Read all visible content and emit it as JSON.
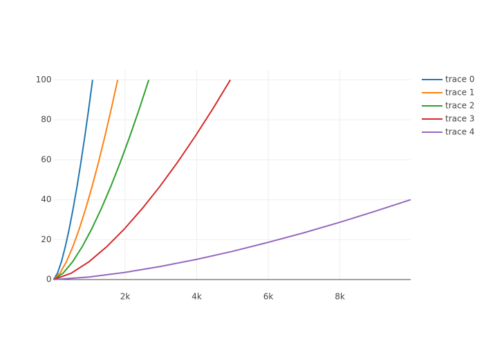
{
  "chart_data": {
    "type": "line",
    "series": [
      {
        "name": "trace 0",
        "color": "#1f77b4",
        "x": [
          0,
          109,
          218,
          327,
          436,
          545,
          654,
          763,
          872,
          981,
          1090
        ],
        "values": [
          0,
          3.2,
          8.9,
          16.4,
          25.3,
          35.4,
          46.5,
          58.6,
          71.6,
          85.4,
          100
        ]
      },
      {
        "name": "trace 1",
        "color": "#ff7f0e",
        "x": [
          0,
          179,
          358,
          537,
          716,
          895,
          1074,
          1253,
          1432,
          1611,
          1790
        ],
        "values": [
          0,
          3.2,
          8.9,
          16.4,
          25.3,
          35.4,
          46.5,
          58.6,
          71.6,
          85.4,
          100
        ]
      },
      {
        "name": "trace 2",
        "color": "#2ca02c",
        "x": [
          0,
          266,
          532,
          798,
          1064,
          1330,
          1596,
          1862,
          2128,
          2394,
          2660
        ],
        "values": [
          0,
          3.2,
          8.9,
          16.4,
          25.3,
          35.4,
          46.5,
          58.6,
          71.6,
          85.4,
          100
        ]
      },
      {
        "name": "trace 3",
        "color": "#d62728",
        "x": [
          0,
          494,
          988,
          1482,
          1976,
          2470,
          2964,
          3458,
          3952,
          4446,
          4940
        ],
        "values": [
          0,
          3.2,
          8.9,
          16.4,
          25.3,
          35.4,
          46.5,
          58.6,
          71.6,
          85.4,
          100
        ]
      },
      {
        "name": "trace 4",
        "color": "#9467bd",
        "x": [
          0,
          998,
          1996,
          2994,
          3992,
          4990,
          5988,
          6986,
          7984,
          8982,
          9980
        ],
        "values": [
          0,
          1.3,
          3.6,
          6.6,
          10.1,
          14.1,
          18.6,
          23.4,
          28.6,
          34.2,
          40
        ]
      }
    ],
    "xlim": [
      0,
      9980
    ],
    "ylim": [
      0,
      105
    ],
    "xticks": [
      {
        "value": 2000,
        "label": "2k"
      },
      {
        "value": 4000,
        "label": "4k"
      },
      {
        "value": 6000,
        "label": "6k"
      },
      {
        "value": 8000,
        "label": "8k"
      }
    ],
    "yticks": [
      0,
      20,
      40,
      60,
      80,
      100
    ],
    "grid": true,
    "legend": "right"
  }
}
